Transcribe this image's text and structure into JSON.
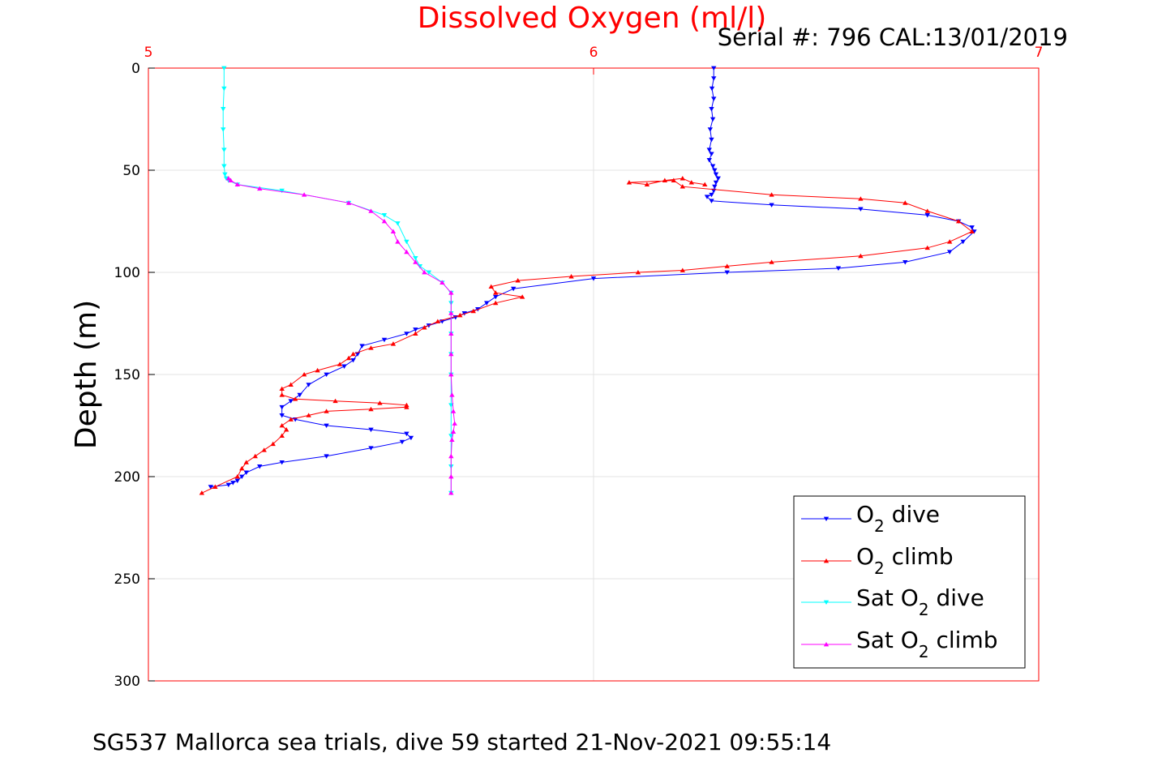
{
  "chart_data": {
    "type": "line",
    "title": "Dissolved Oxygen (ml/l)",
    "subtitle": "Serial #: 796  CAL:13/01/2019",
    "footer": "SG537 Mallorca sea trials, dive 59 started 21-Nov-2021 09:55:14",
    "xlabel": "",
    "ylabel": "Depth (m)",
    "xlim": [
      5,
      7
    ],
    "ylim": [
      0,
      300
    ],
    "y_reversed": true,
    "x_axis_position": "top",
    "xticks": [
      "5",
      "6",
      "7"
    ],
    "xtick_values": [
      5,
      6,
      7
    ],
    "yticks": [
      "0",
      "50",
      "100",
      "150",
      "200",
      "250",
      "300"
    ],
    "ytick_values": [
      0,
      50,
      100,
      150,
      200,
      250,
      300
    ],
    "grid": true,
    "legend_position": "bottom-right",
    "axis_color": "#ff0000",
    "series": [
      {
        "name": "O2 dive",
        "legend_main": "O",
        "legend_sub": "2",
        "legend_rest": " dive",
        "color": "#0000ff",
        "marker": "triangle-down",
        "x": [
          6.27,
          6.27,
          6.266,
          6.27,
          6.265,
          6.268,
          6.262,
          6.265,
          6.26,
          6.265,
          6.26,
          6.268,
          6.272,
          6.275,
          6.28,
          6.275,
          6.272,
          6.27,
          6.265,
          6.255,
          6.265,
          6.4,
          6.6,
          6.75,
          6.82,
          6.85,
          6.855,
          6.83,
          6.8,
          6.7,
          6.55,
          6.3,
          6.0,
          5.82,
          5.78,
          5.76,
          5.74,
          5.71,
          5.69,
          5.66,
          5.63,
          5.6,
          5.58,
          5.53,
          5.48,
          5.47,
          5.46,
          5.44,
          5.4,
          5.36,
          5.34,
          5.32,
          5.3,
          5.3,
          5.33,
          5.4,
          5.5,
          5.58,
          5.59,
          5.57,
          5.5,
          5.4,
          5.3,
          5.25,
          5.22,
          5.21,
          5.2,
          5.19,
          5.18,
          5.14
        ],
        "y": [
          0,
          5,
          10,
          15,
          20,
          25,
          30,
          35,
          40,
          42,
          45,
          48,
          50,
          52,
          54,
          56,
          58,
          60,
          62,
          63,
          65,
          67,
          69,
          72,
          75,
          78,
          80,
          85,
          90,
          95,
          98,
          100,
          103,
          108,
          112,
          115,
          118,
          120,
          122,
          124,
          126,
          128,
          130,
          133,
          136,
          140,
          143,
          146,
          150,
          155,
          160,
          163,
          166,
          170,
          172,
          175,
          177,
          179,
          181,
          183,
          186,
          190,
          193,
          195,
          198,
          200,
          202,
          203,
          204,
          205
        ]
      },
      {
        "name": "O2 climb",
        "legend_main": "O",
        "legend_sub": "2",
        "legend_rest": " climb",
        "color": "#ff0000",
        "marker": "triangle-up",
        "x": [
          5.12,
          5.15,
          5.2,
          5.21,
          5.22,
          5.24,
          5.26,
          5.28,
          5.3,
          5.31,
          5.3,
          5.32,
          5.36,
          5.4,
          5.5,
          5.58,
          5.58,
          5.52,
          5.42,
          5.33,
          5.3,
          5.3,
          5.32,
          5.35,
          5.38,
          5.43,
          5.45,
          5.46,
          5.5,
          5.55,
          5.6,
          5.62,
          5.65,
          5.7,
          5.73,
          5.78,
          5.84,
          5.78,
          5.77,
          5.83,
          5.95,
          6.1,
          6.2,
          6.3,
          6.4,
          6.6,
          6.75,
          6.8,
          6.85,
          6.82,
          6.75,
          6.7,
          6.6,
          6.4,
          6.2,
          6.18,
          6.08,
          6.12,
          6.16,
          6.2,
          6.22,
          6.25
        ],
        "y": [
          208,
          205,
          200,
          196,
          193,
          190,
          187,
          184,
          180,
          177,
          175,
          172,
          170,
          168,
          167,
          166,
          165,
          164,
          163,
          162,
          160,
          157,
          155,
          150,
          148,
          145,
          142,
          140,
          137,
          135,
          130,
          127,
          124,
          121,
          119,
          115,
          112,
          110,
          107,
          104,
          102,
          100,
          99,
          97,
          95,
          92,
          88,
          85,
          80,
          75,
          70,
          66,
          64,
          62,
          58,
          55,
          56,
          57,
          55,
          54,
          56,
          57
        ]
      },
      {
        "name": "Sat O2 dive",
        "legend_main": "Sat O",
        "legend_sub": "2",
        "legend_rest": " dive",
        "color": "#00ffff",
        "marker": "triangle-down",
        "x": [
          5.17,
          5.17,
          5.168,
          5.168,
          5.17,
          5.17,
          5.172,
          5.175,
          5.18,
          5.2,
          5.3,
          5.45,
          5.53,
          5.56,
          5.58,
          5.6,
          5.61,
          5.63,
          5.66,
          5.68,
          5.68,
          5.68,
          5.68,
          5.68,
          5.68,
          5.68,
          5.68,
          5.68,
          5.68
        ],
        "y": [
          0,
          10,
          20,
          30,
          40,
          48,
          52,
          54,
          55,
          57,
          60,
          66,
          72,
          76,
          85,
          93,
          97,
          100,
          105,
          110,
          115,
          120,
          130,
          140,
          150,
          165,
          180,
          195,
          208
        ]
      },
      {
        "name": "Sat O2 climb",
        "legend_main": "Sat O",
        "legend_sub": "2",
        "legend_rest": " climb",
        "color": "#ff00ff",
        "marker": "triangle-up",
        "x": [
          5.68,
          5.68,
          5.68,
          5.682,
          5.685,
          5.688,
          5.685,
          5.682,
          5.68,
          5.68,
          5.68,
          5.68,
          5.68,
          5.66,
          5.62,
          5.6,
          5.58,
          5.56,
          5.55,
          5.53,
          5.5,
          5.45,
          5.35,
          5.25,
          5.2,
          5.185,
          5.18
        ],
        "y": [
          208,
          200,
          190,
          182,
          178,
          174,
          168,
          160,
          150,
          140,
          130,
          120,
          110,
          105,
          100,
          95,
          90,
          85,
          80,
          75,
          70,
          66,
          62,
          59,
          57,
          55,
          54
        ]
      }
    ]
  }
}
